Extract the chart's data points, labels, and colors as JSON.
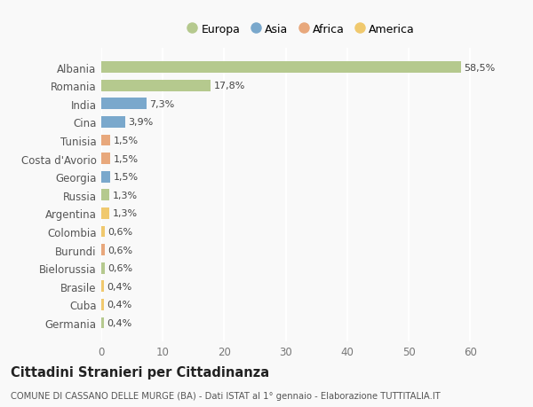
{
  "countries": [
    "Albania",
    "Romania",
    "India",
    "Cina",
    "Tunisia",
    "Costa d'Avorio",
    "Georgia",
    "Russia",
    "Argentina",
    "Colombia",
    "Burundi",
    "Bielorussia",
    "Brasile",
    "Cuba",
    "Germania"
  ],
  "values": [
    58.5,
    17.8,
    7.3,
    3.9,
    1.5,
    1.5,
    1.5,
    1.3,
    1.3,
    0.6,
    0.6,
    0.6,
    0.4,
    0.4,
    0.4
  ],
  "labels": [
    "58,5%",
    "17,8%",
    "7,3%",
    "3,9%",
    "1,5%",
    "1,5%",
    "1,5%",
    "1,3%",
    "1,3%",
    "0,6%",
    "0,6%",
    "0,6%",
    "0,4%",
    "0,4%",
    "0,4%"
  ],
  "continents": [
    "Europa",
    "Europa",
    "Asia",
    "Asia",
    "Africa",
    "Africa",
    "Asia",
    "Europa",
    "America",
    "America",
    "Africa",
    "Europa",
    "America",
    "America",
    "Europa"
  ],
  "continent_colors": {
    "Europa": "#b5c98e",
    "Asia": "#7aa8cc",
    "Africa": "#e8a87c",
    "America": "#f0c96e"
  },
  "legend_items": [
    "Europa",
    "Asia",
    "Africa",
    "America"
  ],
  "title": "Cittadini Stranieri per Cittadinanza",
  "subtitle": "COMUNE DI CASSANO DELLE MURGE (BA) - Dati ISTAT al 1° gennaio - Elaborazione TUTTITALIA.IT",
  "xlim": [
    0,
    65
  ],
  "xticks": [
    0,
    10,
    20,
    30,
    40,
    50,
    60
  ],
  "background_color": "#f9f9f9",
  "grid_color": "#ffffff",
  "bar_height": 0.62
}
